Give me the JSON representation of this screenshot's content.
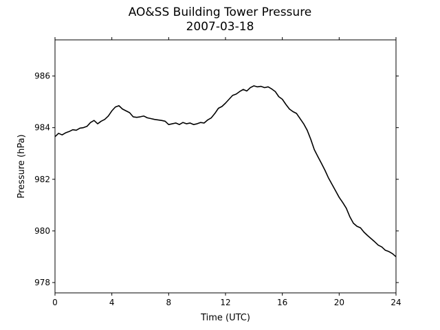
{
  "chart_data": {
    "type": "line",
    "title": "AO&SS Building Tower Pressure",
    "subtitle": "2007-03-18",
    "xlabel": "Time (UTC)",
    "ylabel": "Pressure (hPa)",
    "xlim": [
      0,
      24
    ],
    "ylim": [
      977.6,
      987.4
    ],
    "xticks": [
      0,
      4,
      8,
      12,
      16,
      20,
      24
    ],
    "yticks": [
      978,
      980,
      982,
      984,
      986
    ],
    "grid": false,
    "line_color": "#000000",
    "series": [
      {
        "x": [
          0,
          0.25,
          0.5,
          0.75,
          1.0,
          1.25,
          1.5,
          1.75,
          2.0,
          2.25,
          2.5,
          2.75,
          3.0,
          3.25,
          3.5,
          3.75,
          4.0,
          4.25,
          4.5,
          4.75,
          5.0,
          5.25,
          5.5,
          5.75,
          6.0,
          6.25,
          6.5,
          6.75,
          7.0,
          7.25,
          7.5,
          7.75,
          8.0,
          8.25,
          8.5,
          8.75,
          9.0,
          9.25,
          9.5,
          9.75,
          10.0,
          10.25,
          10.5,
          10.75,
          11.0,
          11.25,
          11.5,
          11.75,
          12.0,
          12.25,
          12.5,
          12.75,
          13.0,
          13.25,
          13.5,
          13.75,
          14.0,
          14.25,
          14.5,
          14.75,
          15.0,
          15.25,
          15.5,
          15.75,
          16.0,
          16.25,
          16.5,
          16.75,
          17.0,
          17.25,
          17.5,
          17.75,
          18.0,
          18.25,
          18.5,
          18.75,
          19.0,
          19.25,
          19.5,
          19.75,
          20.0,
          20.25,
          20.5,
          20.75,
          21.0,
          21.25,
          21.5,
          21.75,
          22.0,
          22.25,
          22.5,
          22.75,
          23.0,
          23.25,
          23.5,
          23.75,
          24.0
        ],
        "y": [
          983.65,
          983.78,
          983.72,
          983.8,
          983.85,
          983.92,
          983.9,
          983.98,
          984.0,
          984.05,
          984.2,
          984.28,
          984.15,
          984.25,
          984.32,
          984.45,
          984.65,
          984.8,
          984.85,
          984.72,
          984.65,
          984.58,
          984.42,
          984.4,
          984.42,
          984.45,
          984.38,
          984.35,
          984.32,
          984.3,
          984.28,
          984.25,
          984.12,
          984.15,
          984.18,
          984.12,
          984.2,
          984.15,
          984.18,
          984.12,
          984.15,
          984.2,
          984.18,
          984.3,
          984.38,
          984.55,
          984.75,
          984.82,
          984.95,
          985.1,
          985.25,
          985.3,
          985.4,
          985.48,
          985.42,
          985.55,
          985.62,
          985.58,
          985.6,
          985.55,
          985.58,
          985.5,
          985.4,
          985.2,
          985.1,
          984.9,
          984.72,
          984.62,
          984.55,
          984.35,
          984.15,
          983.9,
          983.55,
          983.15,
          982.88,
          982.62,
          982.35,
          982.05,
          981.8,
          981.55,
          981.3,
          981.1,
          980.88,
          980.55,
          980.3,
          980.18,
          980.12,
          979.95,
          979.82,
          979.7,
          979.58,
          979.45,
          979.38,
          979.25,
          979.2,
          979.12,
          979.0
        ]
      }
    ]
  }
}
